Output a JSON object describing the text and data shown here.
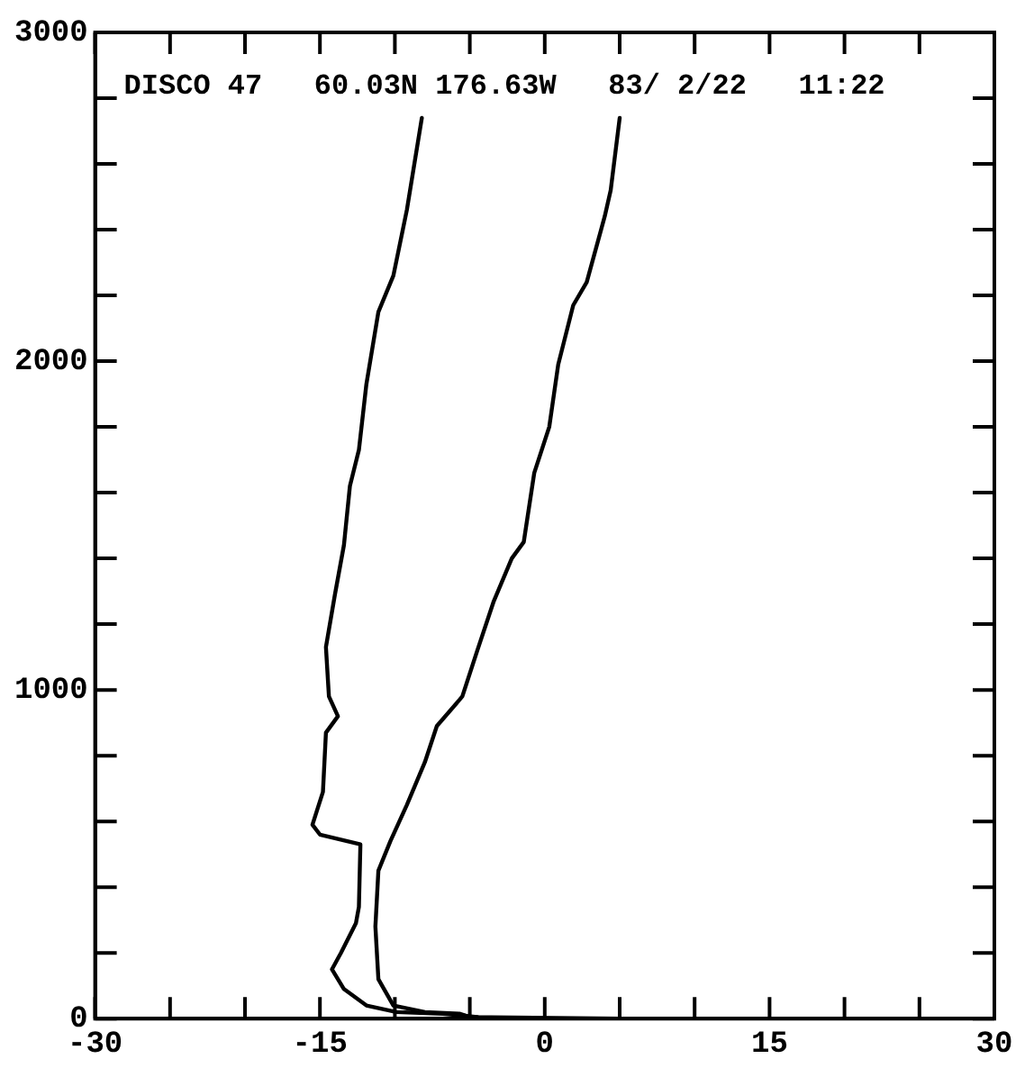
{
  "chart_data": {
    "type": "line",
    "title": "DISCO 47   60.03N 176.63W   83/ 2/22   11:22",
    "marker": "none",
    "line_style": "solid",
    "grid": false,
    "legend": false,
    "xlim": [
      -30,
      30
    ],
    "xticks": [
      -30,
      {
        "value": -25,
        "label": null
      },
      {
        "value": -20,
        "label": null
      },
      -15,
      {
        "value": -10,
        "label": null
      },
      {
        "value": -5,
        "label": null
      },
      0,
      {
        "value": 5,
        "label": null
      },
      {
        "value": 10,
        "label": null
      },
      15,
      {
        "value": 20,
        "label": null
      },
      {
        "value": 25,
        "label": null
      },
      30
    ],
    "ylim": [
      0,
      3000
    ],
    "yticks": [
      0,
      {
        "value": 200,
        "label": null
      },
      {
        "value": 400,
        "label": null
      },
      {
        "value": 600,
        "label": null
      },
      {
        "value": 800,
        "label": null
      },
      1000,
      {
        "value": 1200,
        "label": null
      },
      {
        "value": 1400,
        "label": null
      },
      {
        "value": 1600,
        "label": null
      },
      {
        "value": 1800,
        "label": null
      },
      2000,
      {
        "value": 2200,
        "label": null
      },
      {
        "value": 2400,
        "label": null
      },
      {
        "value": 2600,
        "label": null
      },
      {
        "value": 2800,
        "label": null
      },
      3000
    ],
    "series": [
      {
        "color": "#000000",
        "x": [
          -8.2,
          -9.2,
          -10.1,
          -11.1,
          -11.9,
          -12.4,
          -13.0,
          -13.4,
          -14.0,
          -14.6,
          -14.4,
          -13.8,
          -14.6,
          -14.8,
          -15.5,
          -15.0,
          -12.3,
          -12.4,
          -12.6,
          -13.6,
          -14.2,
          -13.4,
          -11.9,
          -9.9,
          -6.8,
          -4.5
        ],
        "values": [
          2740,
          2460,
          2260,
          2150,
          1930,
          1730,
          1620,
          1440,
          1290,
          1130,
          980,
          920,
          870,
          690,
          590,
          560,
          530,
          340,
          290,
          200,
          150,
          90,
          40,
          20,
          15,
          5
        ]
      },
      {
        "color": "#000000",
        "x": [
          5.0,
          4.4,
          4.0,
          2.8,
          1.9,
          0.9,
          0.3,
          -0.7,
          -1.4,
          -2.2,
          -3.4,
          -4.5,
          -5.5,
          -7.2,
          -8.0,
          -9.2,
          -10.3,
          -11.1,
          -11.3,
          -11.1,
          -10.1,
          -8.0,
          -5.7,
          -5.0,
          5.0
        ],
        "values": [
          2740,
          2520,
          2440,
          2240,
          2170,
          1990,
          1800,
          1660,
          1450,
          1400,
          1270,
          1120,
          980,
          890,
          780,
          650,
          540,
          450,
          280,
          120,
          40,
          20,
          15,
          5,
          0
        ]
      }
    ]
  }
}
